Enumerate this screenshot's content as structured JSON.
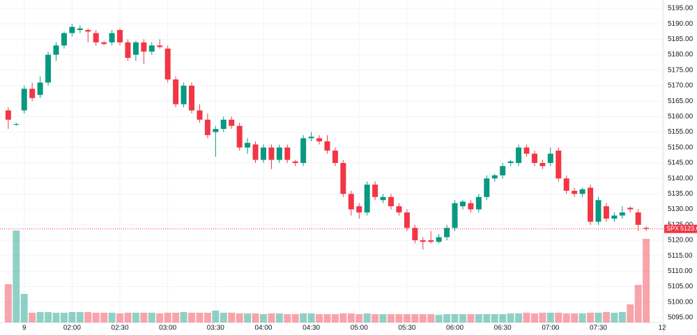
{
  "chart_data": {
    "type": "candlestick",
    "name": "SPX",
    "up_color": "#089981",
    "down_color": "#f23645",
    "grid": true,
    "ylim": [
      5095,
      5195
    ],
    "yticks": [
      {
        "value": 5095,
        "label": "5095.00"
      },
      {
        "value": 5100,
        "label": "5100.00"
      },
      {
        "value": 5105,
        "label": "5105.00"
      },
      {
        "value": 5110,
        "label": "5110.00"
      },
      {
        "value": 5115,
        "label": "5115.00"
      },
      {
        "value": 5120,
        "label": "5120.00"
      },
      {
        "value": 5125,
        "label": "5125.00"
      },
      {
        "value": 5130,
        "label": "5130.00"
      },
      {
        "value": 5135,
        "label": "5135.00"
      },
      {
        "value": 5140,
        "label": "5140.00"
      },
      {
        "value": 5145,
        "label": "5145.00"
      },
      {
        "value": 5150,
        "label": "5150.00"
      },
      {
        "value": 5155,
        "label": "5155.00"
      },
      {
        "value": 5160,
        "label": "5160.00"
      },
      {
        "value": 5165,
        "label": "5165.00"
      },
      {
        "value": 5170,
        "label": "5170.00"
      },
      {
        "value": 5175,
        "label": "5175.00"
      },
      {
        "value": 5180,
        "label": "5180.00"
      },
      {
        "value": 5185,
        "label": "5185.00"
      },
      {
        "value": 5190,
        "label": "5190.00"
      },
      {
        "value": 5195,
        "label": "5195.00"
      }
    ],
    "xlim": [
      -0.6,
      82
    ],
    "xticks": [
      {
        "value": 2,
        "label": "9"
      },
      {
        "value": 8,
        "label": "02:00"
      },
      {
        "value": 14,
        "label": "02:30"
      },
      {
        "value": 20,
        "label": "03:00"
      },
      {
        "value": 26,
        "label": "03:30"
      },
      {
        "value": 32,
        "label": "04:00"
      },
      {
        "value": 38,
        "label": "04:30"
      },
      {
        "value": 44,
        "label": "05:00"
      },
      {
        "value": 50,
        "label": "05:30"
      },
      {
        "value": 56,
        "label": "06:00"
      },
      {
        "value": 62,
        "label": "06:30"
      },
      {
        "value": 68,
        "label": "07:00"
      },
      {
        "value": 74,
        "label": "07:30"
      },
      {
        "value": 82,
        "label": "12"
      }
    ],
    "open": [
      5162,
      5157.5,
      5162,
      5169,
      5167,
      5171,
      5180,
      5183,
      5187,
      5188,
      5188,
      5187,
      5184,
      5184,
      5188,
      5184,
      5180,
      5184,
      5181,
      5183,
      5182,
      5172,
      5164,
      5170,
      5162,
      5159,
      5155,
      5156,
      5159,
      5157,
      5150,
      5151,
      5146,
      5150,
      5146,
      5150,
      5145.5,
      5145,
      5153,
      5153,
      5152,
      5149,
      5145,
      5135,
      5131,
      5129,
      5138,
      5133,
      5134,
      5131,
      5129,
      5124,
      5120,
      5120,
      5119.5,
      5121,
      5124,
      5131,
      5132,
      5130,
      5134,
      5140,
      5141,
      5145,
      5145,
      5150,
      5148,
      5145,
      5145,
      5149,
      5140,
      5136,
      5135,
      5137,
      5126,
      5131,
      5127,
      5128,
      5130.5,
      5129,
      5124
    ],
    "high": [
      5163,
      5158,
      5170,
      5171,
      5173,
      5181,
      5184,
      5187.5,
      5190,
      5189.5,
      5188.5,
      5188,
      5184.5,
      5188,
      5188.5,
      5185,
      5184.5,
      5185,
      5184,
      5185,
      5183,
      5173,
      5171,
      5171,
      5164,
      5161,
      5157,
      5160,
      5160,
      5158,
      5153,
      5152,
      5151,
      5151,
      5151,
      5151,
      5146,
      5154,
      5155,
      5154,
      5154,
      5150,
      5146,
      5136,
      5132,
      5139,
      5139,
      5135,
      5135,
      5132,
      5130,
      5125,
      5121,
      5123,
      5122,
      5125,
      5133,
      5133,
      5133,
      5135,
      5141,
      5141.5,
      5145,
      5146,
      5151,
      5151,
      5149,
      5146,
      5150,
      5150,
      5141,
      5137,
      5137,
      5138,
      5134,
      5132,
      5129,
      5131,
      5131,
      5130,
      5124.5
    ],
    "low": [
      5156,
      5157,
      5161,
      5165,
      5166,
      5170,
      5178,
      5182,
      5186,
      5187,
      5184,
      5183,
      5183,
      5183,
      5183,
      5178,
      5178,
      5177,
      5180,
      5182,
      5171,
      5163,
      5163,
      5161,
      5158,
      5153,
      5147,
      5155,
      5156,
      5149,
      5148,
      5145,
      5145,
      5143,
      5145,
      5145,
      5144,
      5144,
      5152,
      5151,
      5148,
      5144,
      5134,
      5128,
      5127,
      5128,
      5133,
      5132,
      5130,
      5128,
      5123,
      5119,
      5117,
      5119,
      5119,
      5120,
      5123,
      5130,
      5129,
      5129,
      5133,
      5139,
      5140,
      5144,
      5144,
      5147,
      5144,
      5143,
      5144,
      5139,
      5135,
      5134,
      5134,
      5125,
      5125,
      5126,
      5126,
      5127,
      5129,
      5123,
      5123
    ],
    "close": [
      5159,
      5157.6,
      5169,
      5166,
      5171,
      5180,
      5183,
      5187,
      5189,
      5188.5,
      5187.5,
      5184,
      5183.5,
      5187,
      5184,
      5179,
      5184,
      5181,
      5183,
      5182.5,
      5172,
      5164,
      5170,
      5162,
      5159,
      5154,
      5156,
      5159,
      5157,
      5150,
      5151.5,
      5146,
      5150,
      5146,
      5150,
      5146,
      5145,
      5153,
      5153.5,
      5152,
      5149,
      5145,
      5135,
      5130,
      5129,
      5138,
      5134,
      5134,
      5131,
      5129,
      5124,
      5120,
      5119.5,
      5119.5,
      5121,
      5124,
      5132,
      5132.5,
      5130,
      5134,
      5140,
      5141,
      5144,
      5145.5,
      5150,
      5148,
      5145,
      5144,
      5148,
      5140,
      5136,
      5135,
      5136.5,
      5126,
      5133,
      5127,
      5128,
      5129,
      5130,
      5125,
      5123.68
    ],
    "vlim": [
      0,
      140
    ],
    "volume": [
      55,
      132,
      41,
      14,
      15,
      15,
      14,
      14,
      15,
      15,
      15,
      14,
      14,
      14,
      13,
      14,
      14,
      14,
      14,
      13,
      14,
      14,
      15,
      14,
      14,
      14,
      17,
      14,
      14,
      13,
      13,
      13,
      12,
      13,
      13,
      12,
      12,
      13,
      13,
      12,
      12,
      12,
      13,
      13,
      12,
      13,
      12,
      12,
      12,
      12,
      12,
      12,
      12,
      12,
      11,
      12,
      12,
      12,
      12,
      12,
      12,
      12,
      12,
      13,
      13,
      14,
      13,
      14,
      14,
      14,
      13,
      13,
      13,
      14,
      14,
      15,
      14,
      15,
      26,
      54,
      120
    ]
  }
}
